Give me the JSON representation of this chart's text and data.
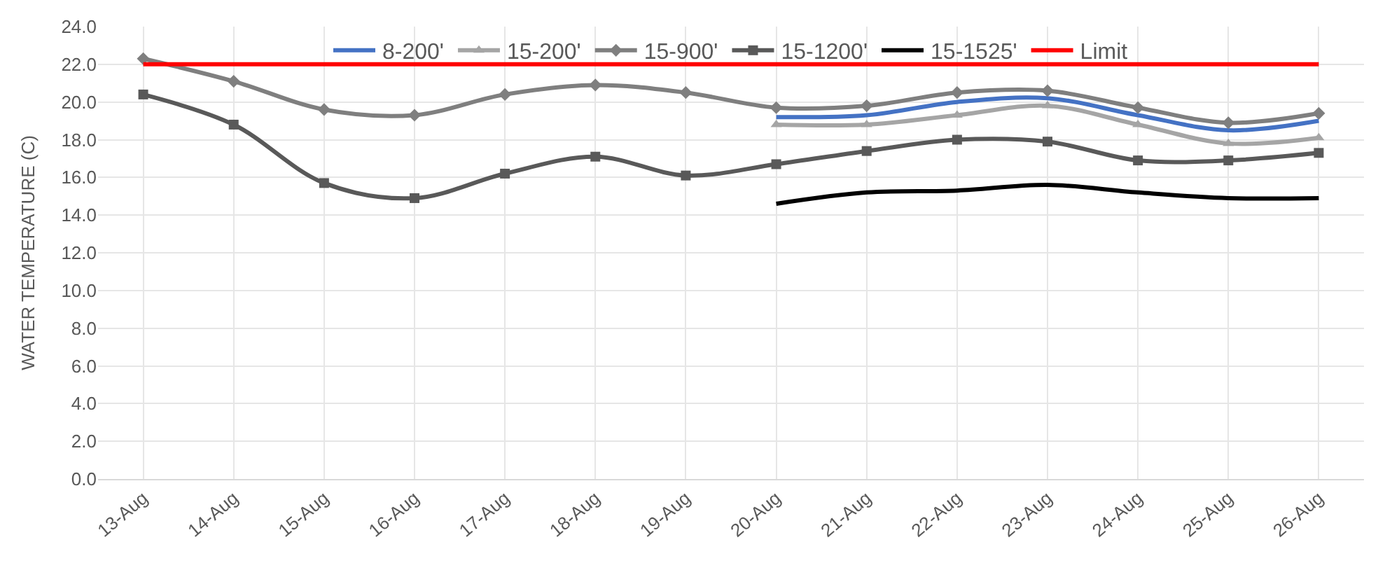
{
  "chart_data": {
    "type": "line",
    "ylabel": "WATER TEMPERATURE (C)",
    "categories": [
      "13-Aug",
      "14-Aug",
      "15-Aug",
      "16-Aug",
      "17-Aug",
      "18-Aug",
      "19-Aug",
      "20-Aug",
      "21-Aug",
      "22-Aug",
      "23-Aug",
      "24-Aug",
      "25-Aug",
      "26-Aug"
    ],
    "series": [
      {
        "name": "8-200'",
        "color": "#4472c4",
        "marker": "none",
        "values": [
          null,
          null,
          null,
          null,
          null,
          null,
          null,
          19.2,
          19.3,
          20.0,
          20.2,
          19.3,
          18.5,
          19.0
        ]
      },
      {
        "name": "15-200'",
        "color": "#a5a5a5",
        "marker": "triangle",
        "values": [
          null,
          null,
          null,
          null,
          null,
          null,
          null,
          18.8,
          18.8,
          19.3,
          19.8,
          18.8,
          17.8,
          18.1
        ]
      },
      {
        "name": "15-900'",
        "color": "#7f7f7f",
        "marker": "diamond",
        "values": [
          22.3,
          21.1,
          19.6,
          19.3,
          20.4,
          20.9,
          20.5,
          19.7,
          19.8,
          20.5,
          20.6,
          19.7,
          18.9,
          19.4
        ]
      },
      {
        "name": "15-1200'",
        "color": "#595959",
        "marker": "square",
        "values": [
          20.4,
          18.8,
          15.7,
          14.9,
          16.2,
          17.1,
          16.1,
          16.7,
          17.4,
          18.0,
          17.9,
          16.9,
          16.9,
          17.3
        ]
      },
      {
        "name": "15-1525'",
        "color": "#000000",
        "marker": "none",
        "values": [
          null,
          null,
          null,
          null,
          null,
          null,
          null,
          14.6,
          15.2,
          15.3,
          15.6,
          15.2,
          14.9,
          14.9
        ]
      },
      {
        "name": "Limit",
        "color": "#ff0000",
        "marker": "none",
        "values": [
          22,
          22,
          22,
          22,
          22,
          22,
          22,
          22,
          22,
          22,
          22,
          22,
          22,
          22
        ]
      }
    ],
    "ylim": [
      0,
      24
    ],
    "yticks": [
      {
        "value": 0,
        "label": "0.0"
      },
      {
        "value": 2,
        "label": "2.0"
      },
      {
        "value": 4,
        "label": "4.0"
      },
      {
        "value": 6,
        "label": "6.0"
      },
      {
        "value": 8,
        "label": "8.0"
      },
      {
        "value": 10,
        "label": "10.0"
      },
      {
        "value": 12,
        "label": "12.0"
      },
      {
        "value": 14,
        "label": "14.0"
      },
      {
        "value": 16,
        "label": "16.0"
      },
      {
        "value": 18,
        "label": "18.0"
      },
      {
        "value": 20,
        "label": "20.0"
      },
      {
        "value": 22,
        "label": "22.0"
      },
      {
        "value": 24,
        "label": "24.0"
      }
    ],
    "grid": true,
    "legend": "top",
    "line_style": "solid"
  }
}
